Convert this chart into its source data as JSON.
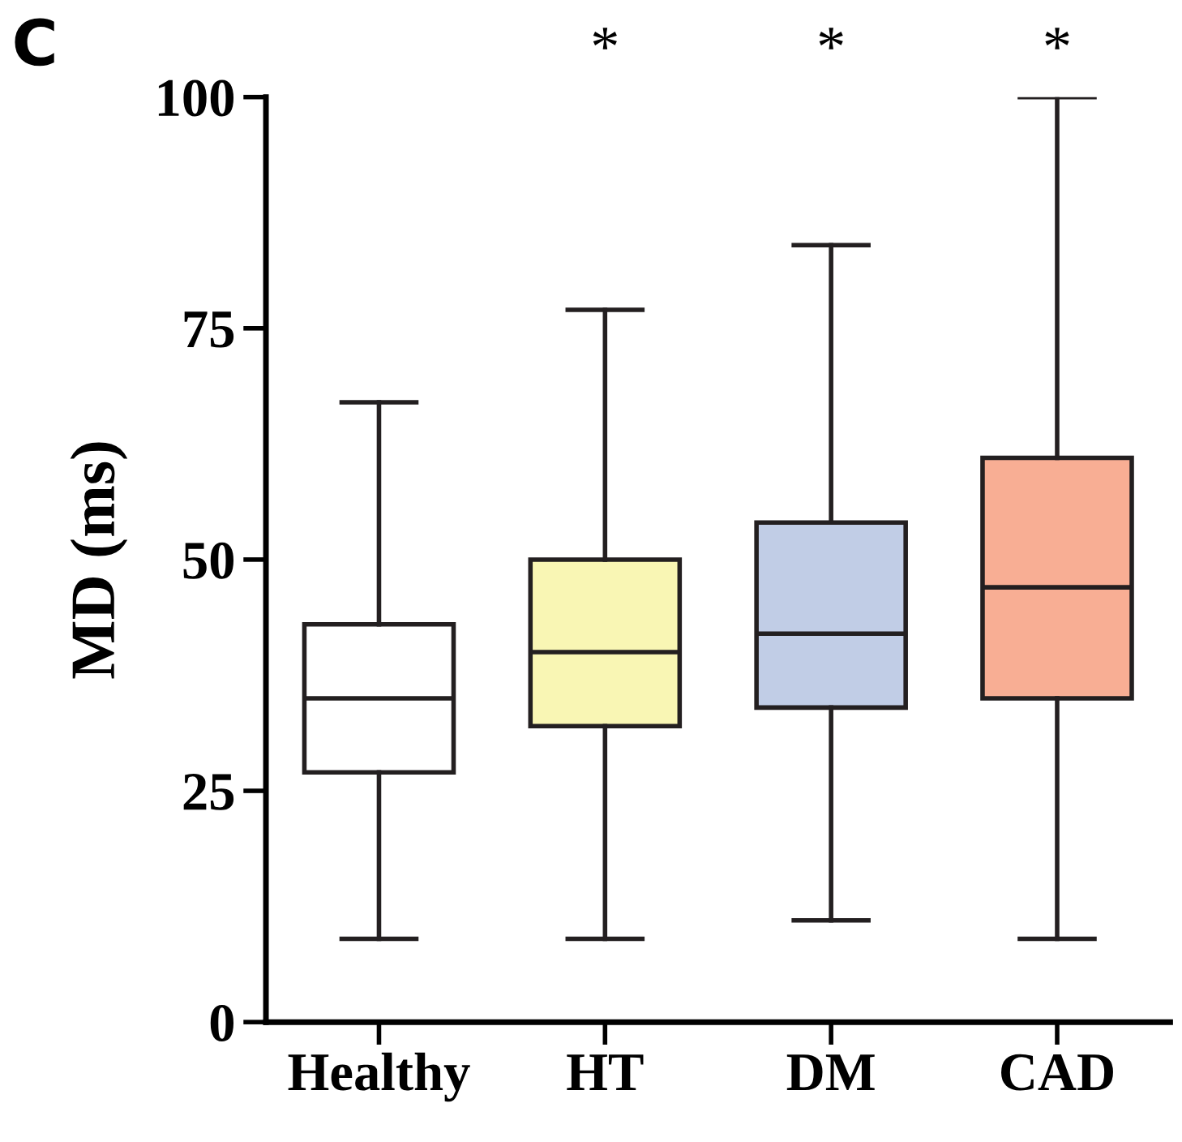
{
  "chart_data": {
    "type": "box",
    "title": "C",
    "ylabel": "MD (ms)",
    "categories": [
      "Healthy",
      "HT",
      "DM",
      "CAD"
    ],
    "boxes": [
      {
        "low": 9,
        "q1": 27,
        "median": 35,
        "q3": 43,
        "high": 67
      },
      {
        "low": 9,
        "q1": 32,
        "median": 40,
        "q3": 50,
        "high": 77
      },
      {
        "low": 11,
        "q1": 34,
        "median": 42,
        "q3": 54,
        "high": 84
      },
      {
        "low": 9,
        "q1": 35,
        "median": 47,
        "q3": 61,
        "high": 100
      }
    ],
    "colors": [
      "#ffffff",
      "#f9f6b4",
      "#c1cde6",
      "#f8ae94"
    ],
    "ylim": [
      0,
      100
    ],
    "yticks": [
      0,
      25,
      50,
      75,
      100
    ],
    "grid": false,
    "annotations": [
      "*",
      "*",
      "*"
    ]
  }
}
